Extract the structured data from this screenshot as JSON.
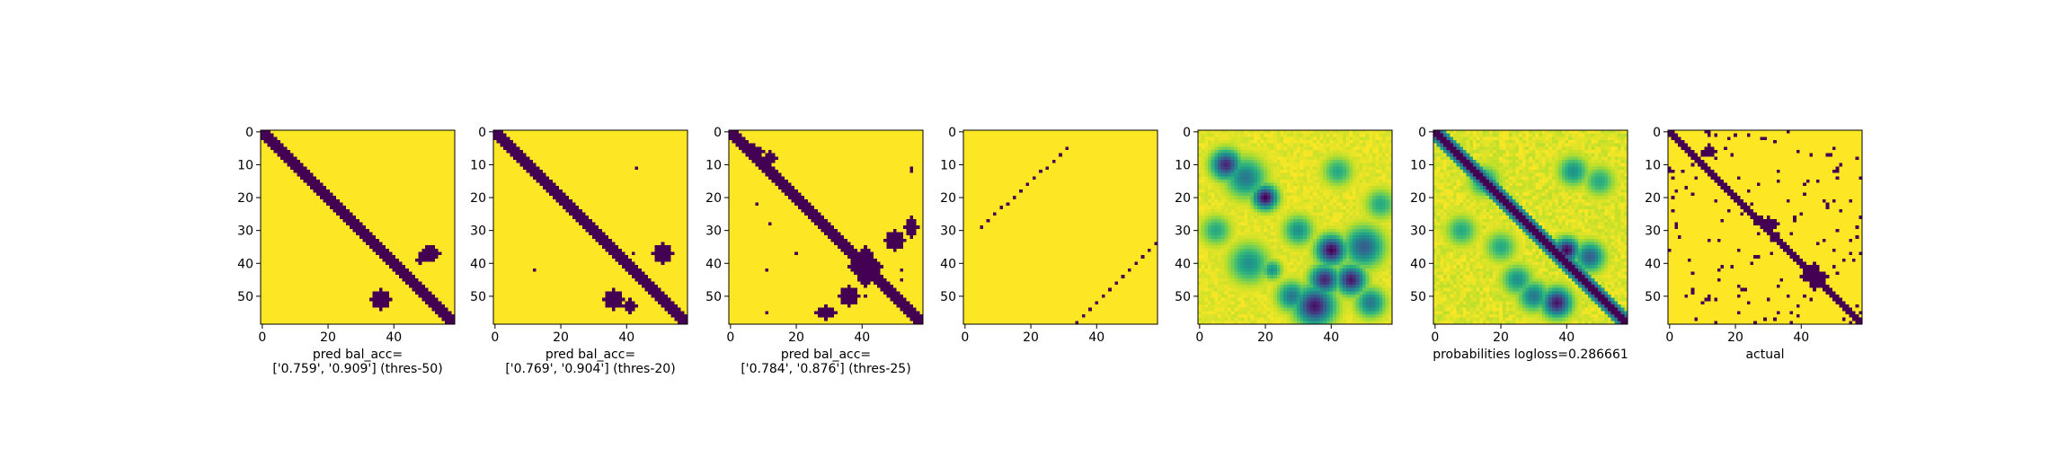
{
  "chart_data": [
    {
      "type": "heatmap",
      "colormap": "viridis",
      "matrix_size": 59,
      "x_ticks": [
        "0",
        "20",
        "40"
      ],
      "y_ticks": [
        "0",
        "10",
        "20",
        "30",
        "40",
        "50"
      ],
      "xlabel_lines": [
        "pred bal_acc=",
        "['0.759', '0.909'] (thres-50)"
      ],
      "content": "binary map: thick diagonal band plus blobs near (x~45-55, y~35-40) and (x~32-38, y~48-55)"
    },
    {
      "type": "heatmap",
      "colormap": "viridis",
      "matrix_size": 59,
      "x_ticks": [
        "0",
        "20",
        "40"
      ],
      "y_ticks": [
        "0",
        "10",
        "20",
        "30",
        "40",
        "50"
      ],
      "xlabel_lines": [
        "pred bal_acc=",
        "['0.769', '0.904'] (thres-20)"
      ],
      "content": "binary map: thick diagonal band plus blobs near (x~45-55, y~35-40) and (x~33-43, y~48-55)"
    },
    {
      "type": "heatmap",
      "colormap": "viridis",
      "matrix_size": 59,
      "x_ticks": [
        "0",
        "20",
        "40"
      ],
      "y_ticks": [
        "0",
        "10",
        "20",
        "30",
        "40",
        "50"
      ],
      "xlabel_lines": [
        "pred bal_acc=",
        "['0.784', '0.876'] (thres-25)"
      ],
      "content": "binary map: diagonal band with large cross-shaped blob around (x~40, y~40) and scattered points"
    },
    {
      "type": "heatmap",
      "colormap": "viridis",
      "matrix_size": 59,
      "x_ticks": [
        "0",
        "20",
        "40"
      ],
      "y_ticks": [
        "0",
        "10",
        "20",
        "30",
        "40",
        "50"
      ],
      "xlabel_lines": [],
      "content": "two thin anti-diagonal dotted lines: from (5,29) to (31,5) and from (34,59) to (59,33)"
    },
    {
      "type": "heatmap",
      "colormap": "viridis",
      "matrix_size": 59,
      "x_ticks": [
        "0",
        "20",
        "40"
      ],
      "y_ticks": [
        "0",
        "10",
        "20",
        "30",
        "40",
        "50"
      ],
      "xlabel_lines": [],
      "content": "continuous map: mostly high values with low-value spots around (8,10), (20,20), (40,35), (38,45), (45,45), (35,52)"
    },
    {
      "type": "heatmap",
      "colormap": "viridis",
      "matrix_size": 59,
      "x_ticks": [
        "0",
        "20",
        "40"
      ],
      "y_ticks": [
        "0",
        "10",
        "20",
        "30",
        "40",
        "50"
      ],
      "xlabel_lines": [
        "probabilities logloss=0.286661"
      ],
      "content": "continuous probability map: strong low-value diagonal band plus spots around (40,36) and (37,52)"
    },
    {
      "type": "heatmap",
      "colormap": "viridis",
      "matrix_size": 59,
      "x_ticks": [
        "0",
        "20",
        "40"
      ],
      "y_ticks": [
        "0",
        "10",
        "20",
        "30",
        "40",
        "50"
      ],
      "xlabel_lines": [
        "actual"
      ],
      "content": "binary ground-truth contact map: diagonal band with many scattered off-diagonal contacts"
    }
  ]
}
